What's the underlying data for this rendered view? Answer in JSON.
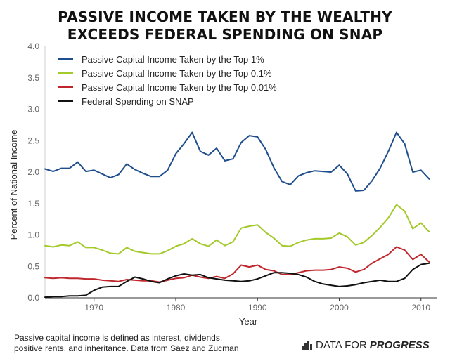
{
  "title_lines": [
    "PASSIVE INCOME TAKEN BY THE WEALTHY",
    "EXCEEDS FEDERAL SPENDING ON SNAP"
  ],
  "footnote_lines": [
    "Passive capital income is defined as interest, dividends,",
    "positive rents, and inheritance. Data from Saez and Zucman"
  ],
  "brand": {
    "plain": "DATA FOR",
    "strong": "PROGRESS",
    "icon": "bar-chart-icon"
  },
  "chart_data": {
    "type": "line",
    "xlabel": "Year",
    "ylabel": "Percent of National Income",
    "xlim": [
      1964,
      2012
    ],
    "ylim": [
      0,
      4.0
    ],
    "xticks": [
      1970,
      1980,
      1990,
      2000,
      2010
    ],
    "yticks": [
      0.0,
      0.5,
      1.0,
      1.5,
      2.0,
      2.5,
      3.0,
      3.5,
      4.0
    ],
    "ytick_labels": [
      "0.0",
      "0.5",
      "1.0",
      "1.5",
      "2.0",
      "2.5",
      "3.0",
      "3.5",
      "4.0"
    ],
    "grid": false,
    "legend_position": "top-left",
    "x": [
      1964,
      1965,
      1966,
      1967,
      1968,
      1969,
      1970,
      1971,
      1972,
      1973,
      1974,
      1975,
      1976,
      1977,
      1978,
      1979,
      1980,
      1981,
      1982,
      1983,
      1984,
      1985,
      1986,
      1987,
      1988,
      1989,
      1990,
      1991,
      1992,
      1993,
      1994,
      1995,
      1996,
      1997,
      1998,
      1999,
      2000,
      2001,
      2002,
      2003,
      2004,
      2005,
      2006,
      2007,
      2008,
      2009,
      2010,
      2011
    ],
    "series": [
      {
        "name": "Passive Capital Income Taken by the Top 1%",
        "color": "#1f4e8c",
        "values": [
          2.05,
          2.01,
          2.06,
          2.06,
          2.16,
          2.01,
          2.03,
          1.97,
          1.91,
          1.96,
          2.13,
          2.04,
          1.98,
          1.93,
          1.93,
          2.03,
          2.29,
          2.45,
          2.63,
          2.33,
          2.27,
          2.38,
          2.18,
          2.21,
          2.47,
          2.58,
          2.56,
          2.36,
          2.07,
          1.85,
          1.8,
          1.94,
          1.99,
          2.02,
          2.01,
          2.0,
          2.11,
          1.97,
          1.7,
          1.71,
          1.86,
          2.06,
          2.33,
          2.63,
          2.45,
          2.0,
          2.03,
          1.89
        ]
      },
      {
        "name": "Passive Capital Income Taken by the Top 0.1%",
        "color": "#a3c92a",
        "values": [
          0.83,
          0.81,
          0.84,
          0.83,
          0.89,
          0.8,
          0.8,
          0.76,
          0.71,
          0.7,
          0.8,
          0.74,
          0.72,
          0.7,
          0.7,
          0.75,
          0.82,
          0.86,
          0.94,
          0.86,
          0.82,
          0.92,
          0.83,
          0.89,
          1.11,
          1.14,
          1.16,
          1.04,
          0.95,
          0.83,
          0.82,
          0.88,
          0.92,
          0.94,
          0.94,
          0.95,
          1.03,
          0.97,
          0.84,
          0.88,
          0.99,
          1.12,
          1.27,
          1.48,
          1.38,
          1.1,
          1.19,
          1.05
        ]
      },
      {
        "name": "Passive Capital Income Taken by the Top 0.01%",
        "color": "#c0272d",
        "values": [
          0.32,
          0.31,
          0.32,
          0.31,
          0.31,
          0.3,
          0.3,
          0.28,
          0.27,
          0.26,
          0.29,
          0.28,
          0.27,
          0.27,
          0.25,
          0.28,
          0.31,
          0.32,
          0.36,
          0.33,
          0.31,
          0.34,
          0.31,
          0.38,
          0.52,
          0.49,
          0.52,
          0.45,
          0.43,
          0.37,
          0.37,
          0.4,
          0.43,
          0.44,
          0.44,
          0.45,
          0.49,
          0.47,
          0.41,
          0.45,
          0.55,
          0.62,
          0.69,
          0.81,
          0.76,
          0.61,
          0.69,
          0.57
        ]
      },
      {
        "name": "Federal Spending on SNAP",
        "color": "#111111",
        "values": [
          0.01,
          0.02,
          0.02,
          0.03,
          0.03,
          0.04,
          0.12,
          0.17,
          0.18,
          0.18,
          0.26,
          0.33,
          0.3,
          0.26,
          0.24,
          0.3,
          0.35,
          0.38,
          0.36,
          0.37,
          0.32,
          0.3,
          0.28,
          0.27,
          0.26,
          0.27,
          0.3,
          0.35,
          0.4,
          0.4,
          0.39,
          0.37,
          0.33,
          0.26,
          0.22,
          0.2,
          0.18,
          0.19,
          0.21,
          0.24,
          0.26,
          0.28,
          0.26,
          0.26,
          0.31,
          0.45,
          0.53,
          0.55
        ]
      }
    ]
  }
}
